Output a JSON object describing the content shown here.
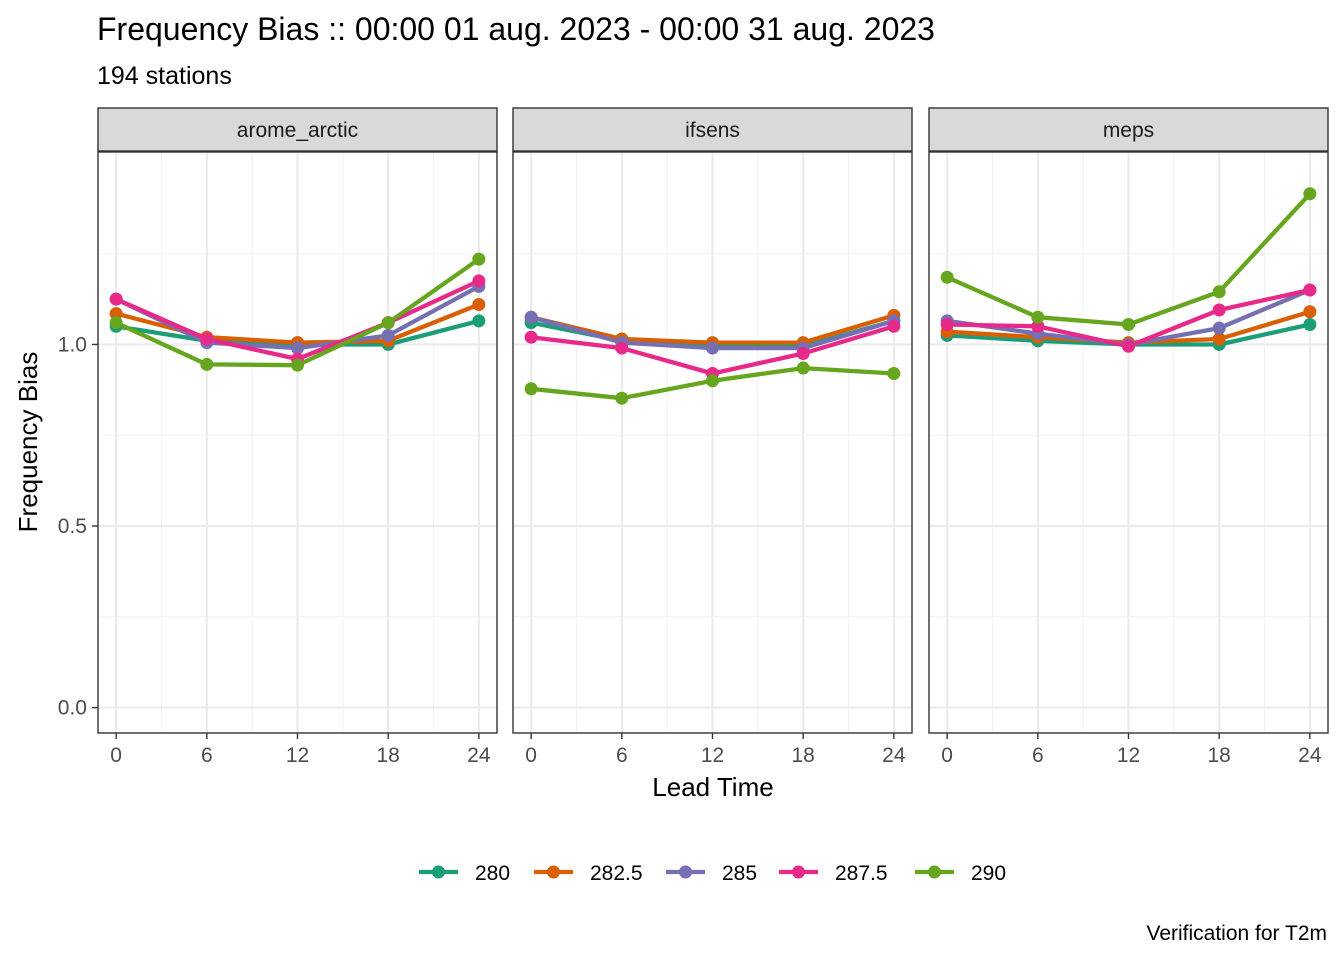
{
  "chart_data": {
    "type": "line",
    "title": "Frequency Bias :: 00:00 01 aug. 2023 - 00:00 31 aug. 2023",
    "subtitle": "194 stations",
    "xlabel": "Lead Time",
    "ylabel": "Frequency Bias",
    "caption": "Verification for T2m",
    "x": [
      0,
      6,
      12,
      18,
      24
    ],
    "x_ticks": [
      "0",
      "6",
      "12",
      "18",
      "24"
    ],
    "y_ticks": [
      {
        "value": 0.0,
        "label": "0.0"
      },
      {
        "value": 0.5,
        "label": "0.5"
      },
      {
        "value": 1.0,
        "label": "1.0"
      }
    ],
    "xlim": [
      -1.2,
      25.2
    ],
    "ylim": [
      -0.07,
      1.53
    ],
    "grid": true,
    "legend_position": "bottom",
    "legend": [
      "280",
      "282.5",
      "285",
      "287.5",
      "290"
    ],
    "colors": {
      "280": "#1b9e77",
      "282.5": "#d95f02",
      "285": "#7570b3",
      "287.5": "#e7298a",
      "290": "#66a61e"
    },
    "panels": [
      {
        "label": "arome_arctic",
        "series": [
          {
            "name": "280",
            "values": [
              1.05,
              1.01,
              1.0,
              1.0,
              1.065
            ]
          },
          {
            "name": "282.5",
            "values": [
              1.085,
              1.02,
              1.005,
              1.01,
              1.11
            ]
          },
          {
            "name": "285",
            "values": [
              1.125,
              1.005,
              0.99,
              1.025,
              1.16
            ]
          },
          {
            "name": "287.5",
            "values": [
              1.125,
              1.015,
              0.96,
              1.06,
              1.175
            ]
          },
          {
            "name": "290",
            "values": [
              1.06,
              0.945,
              0.943,
              1.06,
              1.235
            ]
          }
        ]
      },
      {
        "label": "ifsens",
        "series": [
          {
            "name": "280",
            "values": [
              1.06,
              1.01,
              0.995,
              0.995,
              1.065
            ]
          },
          {
            "name": "282.5",
            "values": [
              1.075,
              1.015,
              1.005,
              1.005,
              1.08
            ]
          },
          {
            "name": "285",
            "values": [
              1.075,
              1.005,
              0.99,
              0.99,
              1.065
            ]
          },
          {
            "name": "287.5",
            "values": [
              1.02,
              0.99,
              0.92,
              0.975,
              1.05
            ]
          },
          {
            "name": "290",
            "values": [
              0.878,
              0.852,
              0.9,
              0.935,
              0.92
            ]
          }
        ]
      },
      {
        "label": "meps",
        "series": [
          {
            "name": "280",
            "values": [
              1.025,
              1.01,
              1.0,
              1.0,
              1.055
            ]
          },
          {
            "name": "282.5",
            "values": [
              1.035,
              1.02,
              1.005,
              1.015,
              1.09
            ]
          },
          {
            "name": "285",
            "values": [
              1.065,
              1.03,
              1.0,
              1.045,
              1.15
            ]
          },
          {
            "name": "287.5",
            "values": [
              1.055,
              1.05,
              0.995,
              1.095,
              1.15
            ]
          },
          {
            "name": "290",
            "values": [
              1.185,
              1.075,
              1.055,
              1.145,
              1.415
            ]
          }
        ]
      }
    ]
  }
}
